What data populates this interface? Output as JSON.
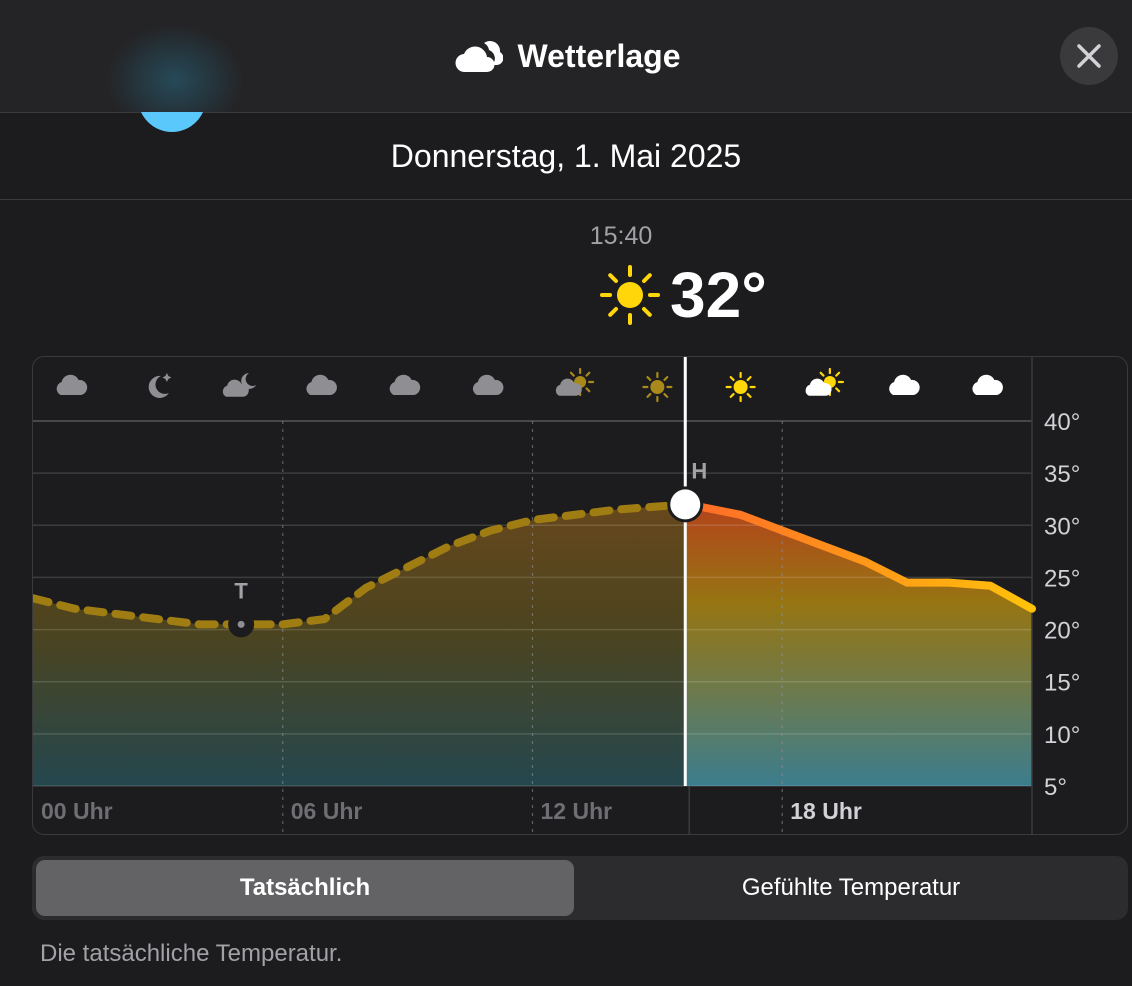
{
  "header": {
    "title": "Wetterlage",
    "title_icon": "cloud-icon",
    "close_icon": "close-icon"
  },
  "date_label": "Donnerstag, 1. Mai 2025",
  "current": {
    "time": "15:40",
    "condition_icon": "sun-icon",
    "temperature": "32°"
  },
  "chart_data": {
    "type": "area",
    "x_unit": "hour",
    "xlim": [
      0,
      24
    ],
    "ylim": [
      5,
      40
    ],
    "y_ticks": [
      {
        "value": 40,
        "label": "40°"
      },
      {
        "value": 35,
        "label": "35°"
      },
      {
        "value": 30,
        "label": "30°"
      },
      {
        "value": 25,
        "label": "25°"
      },
      {
        "value": 20,
        "label": "20°"
      },
      {
        "value": 15,
        "label": "15°"
      },
      {
        "value": 10,
        "label": "10°"
      },
      {
        "value": 5,
        "label": "5°"
      }
    ],
    "x_ticks": [
      {
        "value": 0,
        "label": "00 Uhr",
        "highlight": false
      },
      {
        "value": 6,
        "label": "06 Uhr",
        "highlight": false
      },
      {
        "value": 12,
        "label": "12 Uhr",
        "highlight": false
      },
      {
        "value": 18,
        "label": "18 Uhr",
        "highlight": true
      }
    ],
    "current_hour": 15.67,
    "past": {
      "x": [
        0,
        1,
        2,
        3,
        4,
        5,
        6,
        7,
        8,
        9,
        10,
        11,
        12,
        13,
        14,
        15,
        15.67
      ],
      "y": [
        23,
        22,
        21.5,
        21,
        20.5,
        20.5,
        20.5,
        21,
        24,
        26,
        28,
        29.5,
        30.5,
        31,
        31.5,
        31.8,
        32
      ]
    },
    "forecast": {
      "x": [
        15.67,
        16,
        17,
        18,
        19,
        20,
        21,
        22,
        23,
        24
      ],
      "y": [
        32,
        31.8,
        31,
        29.5,
        28,
        26.5,
        24.5,
        24.5,
        24.2,
        22
      ]
    },
    "markers": [
      {
        "label": "T",
        "x": 5,
        "y": 20.5
      },
      {
        "label": "H",
        "x": 15.67,
        "y": 32
      }
    ],
    "condition_icons": [
      {
        "hour": 1,
        "icon": "cloud-icon"
      },
      {
        "hour": 3,
        "icon": "moon-stars-icon"
      },
      {
        "hour": 5,
        "icon": "cloud-moon-icon"
      },
      {
        "hour": 7,
        "icon": "cloud-icon"
      },
      {
        "hour": 9,
        "icon": "cloud-icon"
      },
      {
        "hour": 11,
        "icon": "cloud-icon"
      },
      {
        "hour": 13,
        "icon": "cloud-sun-icon"
      },
      {
        "hour": 15,
        "icon": "sun-icon"
      },
      {
        "hour": 17,
        "icon": "sun-icon"
      },
      {
        "hour": 19,
        "icon": "cloud-sun-icon"
      },
      {
        "hour": 21,
        "icon": "cloud-icon"
      },
      {
        "hour": 23,
        "icon": "cloud-icon"
      }
    ],
    "colors": {
      "past_line": "#a07d12",
      "forecast_line_start": "#ff6a28",
      "forecast_line_end": "#ffc20a",
      "sun": "#ffd60a"
    }
  },
  "segments": {
    "active": "Tatsächlich",
    "inactive": "Gefühlte Temperatur"
  },
  "description": "Die tatsächliche Temperatur."
}
